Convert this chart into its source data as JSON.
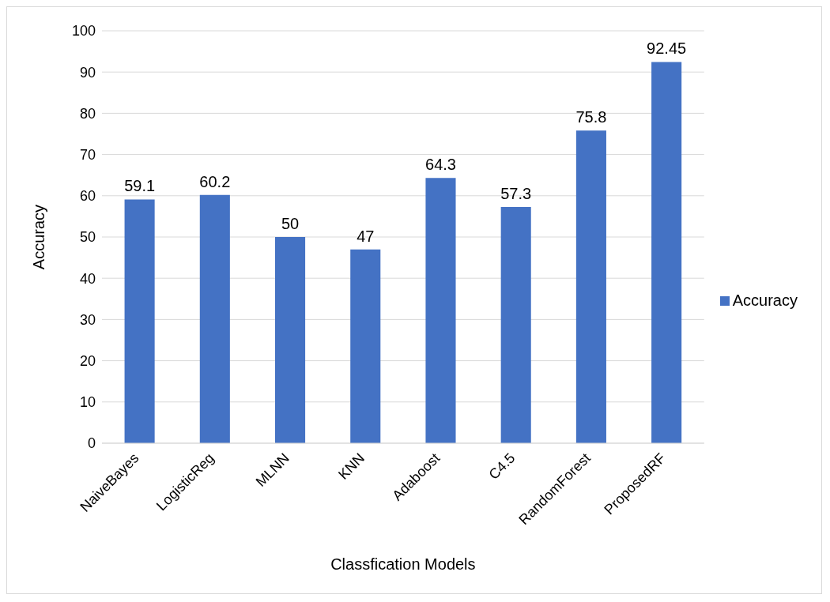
{
  "chart_data": {
    "type": "bar",
    "xlabel": "Classfication Models",
    "ylabel": "Accuracy",
    "categories": [
      "NaiveBayes",
      "LogisticReg",
      "MLNN",
      "KNN",
      "Adaboost",
      "C4.5",
      "RandomForest",
      "ProposedRF"
    ],
    "series": [
      {
        "name": "Accuracy",
        "color": "#4472c4",
        "values": [
          59.1,
          60.2,
          50,
          47,
          64.3,
          57.3,
          75.8,
          92.45
        ]
      }
    ],
    "ylim": [
      0,
      100
    ],
    "yticks": [
      0,
      10,
      20,
      30,
      40,
      50,
      60,
      70,
      80,
      90,
      100
    ],
    "grid": "y",
    "legend": "right",
    "data_labels": true
  }
}
